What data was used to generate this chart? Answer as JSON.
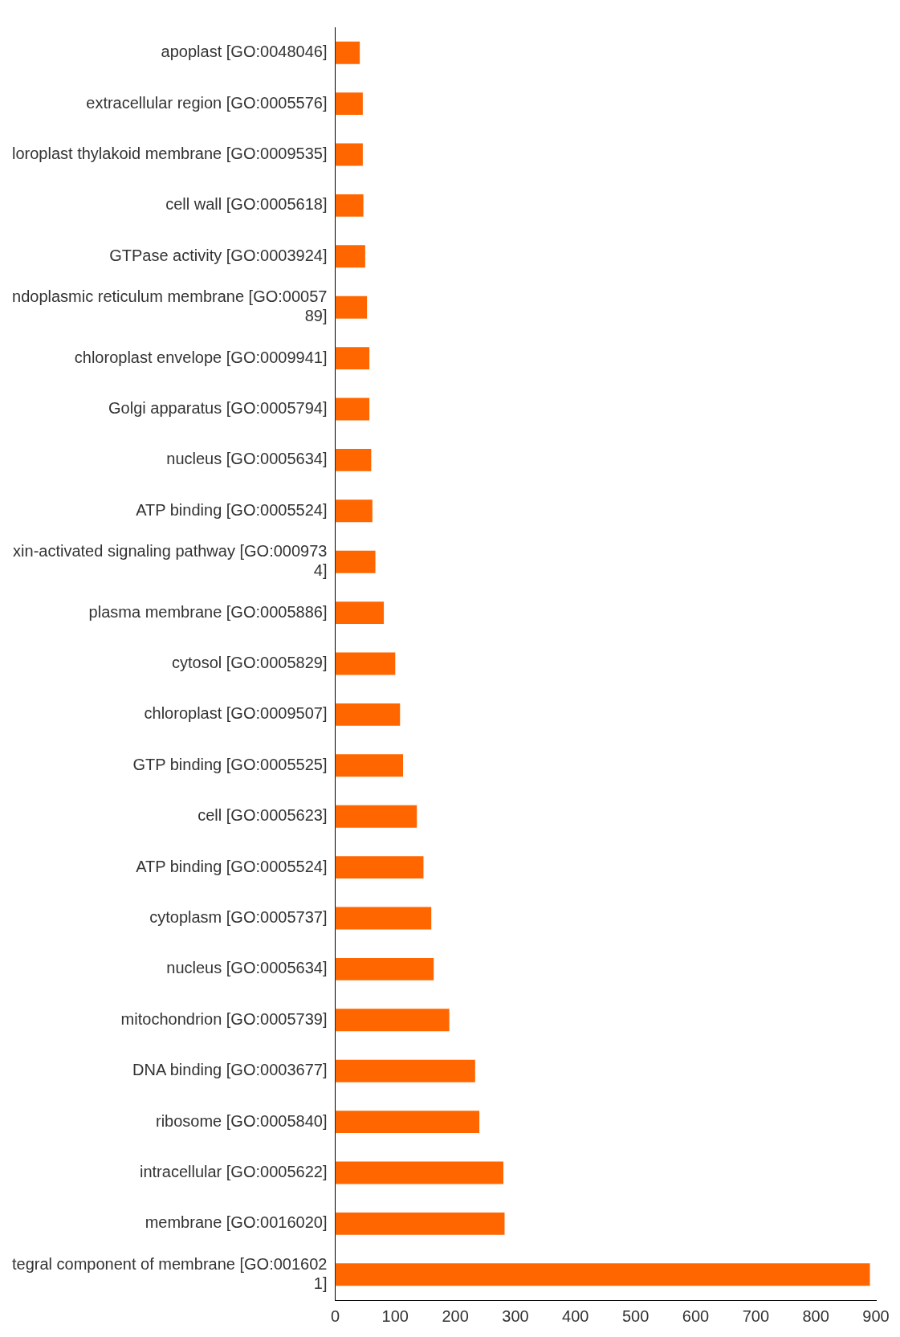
{
  "chart_data": {
    "type": "bar",
    "orientation": "horizontal",
    "categories": [
      "apoplast [GO:0048046]",
      "extracellular region [GO:0005576]",
      "loroplast thylakoid membrane [GO:0009535]",
      "cell wall [GO:0005618]",
      "GTPase activity [GO:0003924]",
      "ndoplasmic reticulum membrane [GO:0005789]",
      "chloroplast envelope [GO:0009941]",
      "Golgi apparatus [GO:0005794]",
      "nucleus [GO:0005634]",
      "ATP binding [GO:0005524]",
      "xin-activated signaling pathway [GO:0009734]",
      "plasma membrane [GO:0005886]",
      "cytosol [GO:0005829]",
      "chloroplast [GO:0009507]",
      "GTP binding [GO:0005525]",
      "cell [GO:0005623]",
      "ATP binding [GO:0005524]",
      "cytoplasm [GO:0005737]",
      "nucleus [GO:0005634]",
      "mitochondrion [GO:0005739]",
      "DNA binding [GO:0003677]",
      "ribosome [GO:0005840]",
      "intracellular [GO:0005622]",
      "membrane [GO:0016020]",
      "tegral component of membrane [GO:0016021]"
    ],
    "values": [
      41,
      46,
      46,
      47,
      50,
      53,
      57,
      57,
      60,
      62,
      67,
      81,
      100,
      108,
      113,
      136,
      147,
      160,
      164,
      190,
      233,
      240,
      280,
      282,
      890
    ],
    "color": "#ff6600",
    "xlim": [
      0,
      900
    ],
    "xticks": [
      0,
      100,
      200,
      300,
      400,
      500,
      600,
      700,
      800,
      900
    ],
    "grid": false,
    "legend": false
  }
}
